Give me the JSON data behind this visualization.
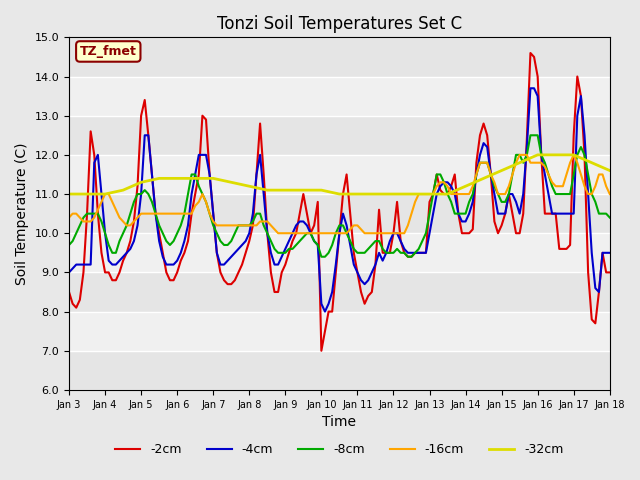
{
  "title": "Tonzi Soil Temperatures Set C",
  "xlabel": "Time",
  "ylabel": "Soil Temperature (C)",
  "ylim": [
    6.0,
    15.0
  ],
  "yticks": [
    6.0,
    7.0,
    8.0,
    9.0,
    10.0,
    11.0,
    12.0,
    13.0,
    14.0,
    15.0
  ],
  "xtick_labels": [
    "Jan 3",
    "Jan 4",
    "Jan 5",
    "Jan 6",
    "Jan 7",
    "Jan 8",
    "Jan 9",
    "Jan 10",
    "Jan 11",
    "Jan 12",
    "Jan 13",
    "Jan 14",
    "Jan 15",
    "Jan 16",
    "Jan 17",
    "Jan 18"
  ],
  "annotation_text": "TZ_fmet",
  "annotation_color": "#8B0000",
  "annotation_bg": "#FFFFCC",
  "annotation_border": "#8B0000",
  "bg_color": "#E8E8E8",
  "plot_bg": "#F0F0F0",
  "series": {
    "neg2cm": {
      "label": "-2cm",
      "color": "#DD0000",
      "lw": 1.5,
      "x": [
        0,
        0.1,
        0.2,
        0.3,
        0.4,
        0.5,
        0.6,
        0.7,
        0.8,
        0.9,
        1.0,
        1.1,
        1.2,
        1.3,
        1.4,
        1.5,
        1.6,
        1.7,
        1.8,
        1.9,
        2.0,
        2.1,
        2.2,
        2.3,
        2.4,
        2.5,
        2.6,
        2.7,
        2.8,
        2.9,
        3.0,
        3.1,
        3.2,
        3.3,
        3.4,
        3.5,
        3.6,
        3.7,
        3.8,
        3.9,
        4.0,
        4.1,
        4.2,
        4.3,
        4.4,
        4.5,
        4.6,
        4.7,
        4.8,
        4.9,
        5.0,
        5.1,
        5.2,
        5.3,
        5.4,
        5.5,
        5.6,
        5.7,
        5.8,
        5.9,
        6.0,
        6.1,
        6.2,
        6.3,
        6.4,
        6.5,
        6.6,
        6.7,
        6.8,
        6.9,
        7.0,
        7.1,
        7.2,
        7.3,
        7.4,
        7.5,
        7.6,
        7.7,
        7.8,
        7.9,
        8.0,
        8.1,
        8.2,
        8.3,
        8.4,
        8.5,
        8.6,
        8.7,
        8.8,
        8.9,
        9.0,
        9.1,
        9.2,
        9.3,
        9.4,
        9.5,
        9.6,
        9.7,
        9.8,
        9.9,
        10.0,
        10.1,
        10.2,
        10.3,
        10.4,
        10.5,
        10.6,
        10.7,
        10.8,
        10.9,
        11.0,
        11.1,
        11.2,
        11.3,
        11.4,
        11.5,
        11.6,
        11.7,
        11.8,
        11.9,
        12.0,
        12.1,
        12.2,
        12.3,
        12.4,
        12.5,
        12.6,
        12.7,
        12.8,
        12.9,
        13.0,
        13.1,
        13.2,
        13.3,
        13.4,
        13.5,
        13.6,
        13.7,
        13.8,
        13.9,
        14.0,
        14.1,
        14.2,
        14.3,
        14.4,
        14.5,
        14.6,
        14.7,
        14.8,
        14.9,
        15.0
      ],
      "y": [
        8.5,
        8.2,
        8.1,
        8.3,
        9.0,
        10.5,
        12.6,
        12.0,
        10.5,
        9.5,
        9.0,
        9.0,
        8.8,
        8.8,
        9.0,
        9.3,
        9.5,
        9.8,
        10.3,
        11.2,
        13.0,
        13.4,
        12.5,
        11.5,
        10.5,
        10.0,
        9.5,
        9.0,
        8.8,
        8.8,
        9.0,
        9.3,
        9.5,
        9.8,
        10.5,
        11.0,
        11.5,
        13.0,
        12.9,
        11.5,
        10.5,
        9.5,
        9.0,
        8.8,
        8.7,
        8.7,
        8.8,
        9.0,
        9.2,
        9.5,
        9.8,
        10.2,
        11.5,
        12.8,
        11.5,
        10.0,
        9.0,
        8.5,
        8.5,
        9.0,
        9.2,
        9.5,
        9.8,
        10.0,
        10.5,
        11.0,
        10.5,
        10.0,
        10.2,
        10.8,
        7.0,
        7.5,
        8.0,
        8.0,
        9.0,
        10.0,
        11.0,
        11.5,
        10.5,
        9.5,
        9.0,
        8.5,
        8.2,
        8.4,
        8.5,
        9.2,
        10.6,
        9.5,
        9.5,
        9.5,
        10.0,
        10.8,
        9.8,
        9.5,
        9.4,
        9.4,
        9.5,
        9.5,
        9.5,
        9.5,
        10.8,
        11.0,
        11.5,
        11.1,
        11.0,
        11.0,
        11.2,
        11.5,
        10.5,
        10.0,
        10.0,
        10.0,
        10.1,
        11.8,
        12.5,
        12.8,
        12.5,
        11.5,
        10.3,
        10.0,
        10.2,
        10.5,
        11.0,
        10.5,
        10.0,
        10.0,
        10.5,
        12.4,
        14.6,
        14.5,
        14.0,
        12.0,
        10.5,
        10.5,
        10.5,
        10.5,
        9.6,
        9.6,
        9.6,
        9.7,
        12.5,
        14.0,
        13.5,
        12.0,
        9.0,
        7.8,
        7.7,
        8.5,
        9.5,
        9.0,
        9.0
      ]
    },
    "neg4cm": {
      "label": "-4cm",
      "color": "#0000CC",
      "lw": 1.5,
      "x": [
        0,
        0.1,
        0.2,
        0.3,
        0.4,
        0.5,
        0.6,
        0.7,
        0.8,
        0.9,
        1.0,
        1.1,
        1.2,
        1.3,
        1.4,
        1.5,
        1.6,
        1.7,
        1.8,
        1.9,
        2.0,
        2.1,
        2.2,
        2.3,
        2.4,
        2.5,
        2.6,
        2.7,
        2.8,
        2.9,
        3.0,
        3.1,
        3.2,
        3.3,
        3.4,
        3.5,
        3.6,
        3.7,
        3.8,
        3.9,
        4.0,
        4.1,
        4.2,
        4.3,
        4.4,
        4.5,
        4.6,
        4.7,
        4.8,
        4.9,
        5.0,
        5.1,
        5.2,
        5.3,
        5.4,
        5.5,
        5.6,
        5.7,
        5.8,
        5.9,
        6.0,
        6.1,
        6.2,
        6.3,
        6.4,
        6.5,
        6.6,
        6.7,
        6.8,
        6.9,
        7.0,
        7.1,
        7.2,
        7.3,
        7.4,
        7.5,
        7.6,
        7.7,
        7.8,
        7.9,
        8.0,
        8.1,
        8.2,
        8.3,
        8.4,
        8.5,
        8.6,
        8.7,
        8.8,
        8.9,
        9.0,
        9.1,
        9.2,
        9.3,
        9.4,
        9.5,
        9.6,
        9.7,
        9.8,
        9.9,
        10.0,
        10.1,
        10.2,
        10.3,
        10.4,
        10.5,
        10.6,
        10.7,
        10.8,
        10.9,
        11.0,
        11.1,
        11.2,
        11.3,
        11.4,
        11.5,
        11.6,
        11.7,
        11.8,
        11.9,
        12.0,
        12.1,
        12.2,
        12.3,
        12.4,
        12.5,
        12.6,
        12.7,
        12.8,
        12.9,
        13.0,
        13.1,
        13.2,
        13.3,
        13.4,
        13.5,
        13.6,
        13.7,
        13.8,
        13.9,
        14.0,
        14.1,
        14.2,
        14.3,
        14.4,
        14.5,
        14.6,
        14.7,
        14.8,
        14.9,
        15.0
      ],
      "y": [
        9.0,
        9.1,
        9.2,
        9.2,
        9.2,
        9.2,
        9.2,
        11.8,
        12.0,
        11.0,
        10.0,
        9.3,
        9.2,
        9.2,
        9.3,
        9.4,
        9.5,
        9.6,
        9.8,
        10.2,
        11.0,
        12.5,
        12.5,
        11.5,
        10.5,
        9.8,
        9.4,
        9.2,
        9.2,
        9.2,
        9.3,
        9.5,
        9.8,
        10.2,
        11.0,
        11.5,
        12.0,
        12.0,
        12.0,
        11.5,
        10.5,
        9.5,
        9.2,
        9.2,
        9.3,
        9.4,
        9.5,
        9.6,
        9.7,
        9.8,
        10.0,
        10.5,
        11.5,
        12.0,
        11.0,
        10.0,
        9.5,
        9.2,
        9.2,
        9.4,
        9.6,
        9.8,
        10.0,
        10.2,
        10.3,
        10.3,
        10.2,
        10.0,
        9.8,
        9.7,
        8.2,
        8.0,
        8.2,
        8.5,
        9.2,
        10.0,
        10.5,
        10.2,
        9.7,
        9.2,
        9.0,
        8.8,
        8.7,
        8.8,
        9.0,
        9.2,
        9.5,
        9.3,
        9.5,
        9.8,
        10.0,
        10.0,
        9.8,
        9.6,
        9.5,
        9.5,
        9.5,
        9.5,
        9.5,
        9.5,
        10.0,
        10.5,
        11.0,
        11.2,
        11.3,
        11.3,
        11.2,
        11.0,
        10.5,
        10.3,
        10.3,
        10.5,
        10.8,
        11.5,
        12.0,
        12.3,
        12.2,
        11.5,
        11.0,
        10.5,
        10.5,
        10.5,
        11.0,
        11.0,
        10.8,
        10.5,
        11.0,
        12.2,
        13.7,
        13.7,
        13.5,
        12.0,
        11.5,
        11.0,
        10.5,
        10.5,
        10.5,
        10.5,
        10.5,
        10.5,
        10.5,
        13.0,
        13.5,
        12.5,
        11.0,
        9.5,
        8.6,
        8.5,
        9.5,
        9.5,
        9.5
      ]
    },
    "neg8cm": {
      "label": "-8cm",
      "color": "#00AA00",
      "lw": 1.5,
      "x": [
        0,
        0.1,
        0.2,
        0.3,
        0.4,
        0.5,
        0.6,
        0.7,
        0.8,
        0.9,
        1.0,
        1.1,
        1.2,
        1.3,
        1.4,
        1.5,
        1.6,
        1.7,
        1.8,
        1.9,
        2.0,
        2.1,
        2.2,
        2.3,
        2.4,
        2.5,
        2.6,
        2.7,
        2.8,
        2.9,
        3.0,
        3.1,
        3.2,
        3.3,
        3.4,
        3.5,
        3.6,
        3.7,
        3.8,
        3.9,
        4.0,
        4.1,
        4.2,
        4.3,
        4.4,
        4.5,
        4.6,
        4.7,
        4.8,
        4.9,
        5.0,
        5.1,
        5.2,
        5.3,
        5.4,
        5.5,
        5.6,
        5.7,
        5.8,
        5.9,
        6.0,
        6.1,
        6.2,
        6.3,
        6.4,
        6.5,
        6.6,
        6.7,
        6.8,
        6.9,
        7.0,
        7.1,
        7.2,
        7.3,
        7.4,
        7.5,
        7.6,
        7.7,
        7.8,
        7.9,
        8.0,
        8.1,
        8.2,
        8.3,
        8.4,
        8.5,
        8.6,
        8.7,
        8.8,
        8.9,
        9.0,
        9.1,
        9.2,
        9.3,
        9.4,
        9.5,
        9.6,
        9.7,
        9.8,
        9.9,
        10.0,
        10.1,
        10.2,
        10.3,
        10.4,
        10.5,
        10.6,
        10.7,
        10.8,
        10.9,
        11.0,
        11.1,
        11.2,
        11.3,
        11.4,
        11.5,
        11.6,
        11.7,
        11.8,
        11.9,
        12.0,
        12.1,
        12.2,
        12.3,
        12.4,
        12.5,
        12.6,
        12.7,
        12.8,
        12.9,
        13.0,
        13.1,
        13.2,
        13.3,
        13.4,
        13.5,
        13.6,
        13.7,
        13.8,
        13.9,
        14.0,
        14.1,
        14.2,
        14.3,
        14.4,
        14.5,
        14.6,
        14.7,
        14.8,
        14.9,
        15.0
      ],
      "y": [
        9.7,
        9.8,
        10.0,
        10.2,
        10.4,
        10.5,
        10.5,
        10.5,
        10.5,
        10.3,
        10.0,
        9.7,
        9.5,
        9.5,
        9.8,
        10.0,
        10.2,
        10.5,
        10.8,
        11.0,
        11.0,
        11.1,
        11.0,
        10.8,
        10.5,
        10.2,
        10.0,
        9.8,
        9.7,
        9.8,
        10.0,
        10.2,
        10.5,
        11.0,
        11.5,
        11.5,
        11.2,
        11.0,
        10.8,
        10.5,
        10.2,
        10.0,
        9.8,
        9.7,
        9.7,
        9.8,
        10.0,
        10.2,
        10.2,
        10.2,
        10.2,
        10.3,
        10.5,
        10.5,
        10.2,
        10.0,
        9.8,
        9.6,
        9.5,
        9.5,
        9.5,
        9.6,
        9.6,
        9.7,
        9.8,
        9.9,
        10.0,
        10.0,
        9.8,
        9.7,
        9.4,
        9.4,
        9.5,
        9.7,
        10.0,
        10.2,
        10.2,
        10.0,
        9.8,
        9.6,
        9.5,
        9.5,
        9.5,
        9.6,
        9.7,
        9.8,
        9.8,
        9.6,
        9.5,
        9.5,
        9.5,
        9.6,
        9.5,
        9.5,
        9.4,
        9.4,
        9.5,
        9.6,
        9.8,
        10.0,
        10.5,
        11.0,
        11.5,
        11.5,
        11.3,
        11.0,
        10.8,
        10.5,
        10.5,
        10.5,
        10.5,
        10.8,
        11.0,
        11.5,
        11.8,
        11.8,
        11.8,
        11.5,
        11.2,
        11.0,
        10.8,
        10.8,
        11.0,
        11.5,
        12.0,
        12.0,
        11.8,
        12.0,
        12.5,
        12.5,
        12.5,
        12.0,
        11.8,
        11.5,
        11.2,
        11.0,
        11.0,
        11.0,
        11.0,
        11.0,
        11.5,
        12.0,
        12.2,
        12.0,
        11.5,
        11.0,
        10.8,
        10.5,
        10.5,
        10.5,
        10.4
      ]
    },
    "neg16cm": {
      "label": "-16cm",
      "color": "#FFA500",
      "lw": 1.5,
      "x": [
        0,
        0.1,
        0.2,
        0.3,
        0.4,
        0.5,
        0.6,
        0.7,
        0.8,
        0.9,
        1.0,
        1.1,
        1.2,
        1.3,
        1.4,
        1.5,
        1.6,
        1.7,
        1.8,
        1.9,
        2.0,
        2.1,
        2.2,
        2.3,
        2.4,
        2.5,
        2.6,
        2.7,
        2.8,
        2.9,
        3.0,
        3.1,
        3.2,
        3.3,
        3.4,
        3.5,
        3.6,
        3.7,
        3.8,
        3.9,
        4.0,
        4.1,
        4.2,
        4.3,
        4.4,
        4.5,
        4.6,
        4.7,
        4.8,
        4.9,
        5.0,
        5.1,
        5.2,
        5.3,
        5.4,
        5.5,
        5.6,
        5.7,
        5.8,
        5.9,
        6.0,
        6.1,
        6.2,
        6.3,
        6.4,
        6.5,
        6.6,
        6.7,
        6.8,
        6.9,
        7.0,
        7.1,
        7.2,
        7.3,
        7.4,
        7.5,
        7.6,
        7.7,
        7.8,
        7.9,
        8.0,
        8.1,
        8.2,
        8.3,
        8.4,
        8.5,
        8.6,
        8.7,
        8.8,
        8.9,
        9.0,
        9.1,
        9.2,
        9.3,
        9.4,
        9.5,
        9.6,
        9.7,
        9.8,
        9.9,
        10.0,
        10.1,
        10.2,
        10.3,
        10.4,
        10.5,
        10.6,
        10.7,
        10.8,
        10.9,
        11.0,
        11.1,
        11.2,
        11.3,
        11.4,
        11.5,
        11.6,
        11.7,
        11.8,
        11.9,
        12.0,
        12.1,
        12.2,
        12.3,
        12.4,
        12.5,
        12.6,
        12.7,
        12.8,
        12.9,
        13.0,
        13.1,
        13.2,
        13.3,
        13.4,
        13.5,
        13.6,
        13.7,
        13.8,
        13.9,
        14.0,
        14.1,
        14.2,
        14.3,
        14.4,
        14.5,
        14.6,
        14.7,
        14.8,
        14.9,
        15.0
      ],
      "y": [
        10.4,
        10.5,
        10.5,
        10.4,
        10.3,
        10.3,
        10.3,
        10.4,
        10.6,
        10.8,
        11.0,
        11.0,
        10.8,
        10.6,
        10.4,
        10.3,
        10.2,
        10.2,
        10.3,
        10.4,
        10.5,
        10.5,
        10.5,
        10.5,
        10.5,
        10.5,
        10.5,
        10.5,
        10.5,
        10.5,
        10.5,
        10.5,
        10.5,
        10.5,
        10.5,
        10.7,
        10.8,
        11.0,
        10.8,
        10.5,
        10.3,
        10.2,
        10.2,
        10.2,
        10.2,
        10.2,
        10.2,
        10.2,
        10.2,
        10.2,
        10.2,
        10.2,
        10.2,
        10.3,
        10.3,
        10.3,
        10.2,
        10.1,
        10.0,
        10.0,
        10.0,
        10.0,
        10.0,
        10.0,
        10.0,
        10.0,
        10.0,
        10.0,
        10.0,
        10.0,
        10.0,
        10.0,
        10.0,
        10.0,
        10.0,
        10.0,
        10.0,
        10.0,
        10.1,
        10.2,
        10.2,
        10.1,
        10.0,
        10.0,
        10.0,
        10.0,
        10.0,
        10.0,
        10.0,
        10.0,
        10.0,
        10.0,
        10.0,
        10.0,
        10.2,
        10.5,
        10.8,
        11.0,
        11.0,
        11.0,
        11.0,
        11.0,
        11.2,
        11.3,
        11.3,
        11.2,
        11.0,
        11.0,
        11.0,
        11.0,
        11.0,
        11.0,
        11.2,
        11.5,
        11.8,
        11.8,
        11.8,
        11.5,
        11.3,
        11.0,
        11.0,
        11.0,
        11.2,
        11.5,
        11.8,
        12.0,
        12.0,
        12.0,
        11.8,
        11.8,
        11.8,
        11.8,
        11.7,
        11.5,
        11.3,
        11.2,
        11.2,
        11.2,
        11.5,
        11.8,
        12.0,
        11.8,
        11.5,
        11.2,
        11.0,
        11.0,
        11.2,
        11.5,
        11.5,
        11.2,
        11.0
      ]
    },
    "neg32cm": {
      "label": "-32cm",
      "color": "#DDDD00",
      "lw": 2.0,
      "x": [
        0,
        0.5,
        1.0,
        1.5,
        2.0,
        2.5,
        3.0,
        3.5,
        4.0,
        4.5,
        5.0,
        5.5,
        6.0,
        6.5,
        7.0,
        7.5,
        8.0,
        8.5,
        9.0,
        9.5,
        10.0,
        10.5,
        11.0,
        11.5,
        12.0,
        12.5,
        13.0,
        13.5,
        14.0,
        14.5,
        15.0
      ],
      "y": [
        11.0,
        11.0,
        11.0,
        11.1,
        11.3,
        11.4,
        11.4,
        11.4,
        11.4,
        11.3,
        11.2,
        11.1,
        11.1,
        11.1,
        11.1,
        11.0,
        11.0,
        11.0,
        11.0,
        11.0,
        11.0,
        11.0,
        11.2,
        11.4,
        11.6,
        11.8,
        12.0,
        12.0,
        12.0,
        11.8,
        11.6
      ]
    }
  },
  "xlim": [
    0,
    15
  ],
  "xtick_positions": [
    0,
    1,
    2,
    3,
    4,
    5,
    6,
    7,
    8,
    9,
    10,
    11,
    12,
    13,
    14,
    15
  ]
}
